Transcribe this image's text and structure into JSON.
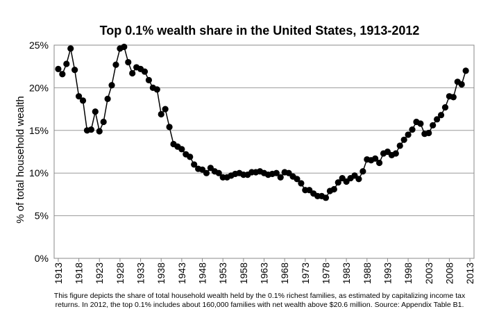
{
  "chart_data": {
    "type": "line",
    "title": "Top 0.1% wealth share in the United States, 1913-2012",
    "y_label": "% of total household wealth",
    "note": [
      "This figure depicts the share of total household wealth held by the 0.1% richest families, as estimated by capitalizing income tax",
      "returns. In 2012, the top 0.1% includes about 160,000 families with net wealth above $20.6 million. Source: Appendix Table B1."
    ],
    "x": [
      1913,
      1914,
      1915,
      1916,
      1917,
      1918,
      1919,
      1920,
      1921,
      1922,
      1923,
      1924,
      1925,
      1926,
      1927,
      1928,
      1929,
      1930,
      1931,
      1932,
      1933,
      1934,
      1935,
      1936,
      1937,
      1938,
      1939,
      1940,
      1941,
      1942,
      1943,
      1944,
      1945,
      1946,
      1947,
      1948,
      1949,
      1950,
      1951,
      1952,
      1953,
      1954,
      1955,
      1956,
      1957,
      1958,
      1959,
      1960,
      1961,
      1962,
      1963,
      1964,
      1965,
      1966,
      1967,
      1968,
      1969,
      1970,
      1971,
      1972,
      1973,
      1974,
      1975,
      1976,
      1977,
      1978,
      1979,
      1980,
      1981,
      1982,
      1983,
      1984,
      1985,
      1986,
      1987,
      1988,
      1989,
      1990,
      1991,
      1992,
      1993,
      1994,
      1995,
      1996,
      1997,
      1998,
      1999,
      2000,
      2001,
      2002,
      2003,
      2004,
      2005,
      2006,
      2007,
      2008,
      2009,
      2010,
      2011,
      2012
    ],
    "series": [
      {
        "color": "#000000",
        "values": [
          22.2,
          21.6,
          22.8,
          24.6,
          22.1,
          19.0,
          18.5,
          15.0,
          15.1,
          17.2,
          14.9,
          16.0,
          18.7,
          20.3,
          22.7,
          24.6,
          24.8,
          23.0,
          21.7,
          22.4,
          22.2,
          21.9,
          20.9,
          20.0,
          19.8,
          16.9,
          17.5,
          15.4,
          13.4,
          13.1,
          12.8,
          12.2,
          11.9,
          11.0,
          10.5,
          10.4,
          10.0,
          10.6,
          10.2,
          10.0,
          9.5,
          9.5,
          9.7,
          9.9,
          10.0,
          9.8,
          9.8,
          10.1,
          10.1,
          10.2,
          10.0,
          9.8,
          9.9,
          10.0,
          9.5,
          10.1,
          10.0,
          9.6,
          9.3,
          8.8,
          8.0,
          8.0,
          7.6,
          7.3,
          7.3,
          7.1,
          7.9,
          8.1,
          8.9,
          9.4,
          9.0,
          9.4,
          9.7,
          9.3,
          10.2,
          11.6,
          11.5,
          11.7,
          11.2,
          12.3,
          12.5,
          12.1,
          12.3,
          13.2,
          13.9,
          14.5,
          15.1,
          16.0,
          15.8,
          14.6,
          14.7,
          15.6,
          16.3,
          16.8,
          17.7,
          19.0,
          18.9,
          20.7,
          20.4,
          22.0
        ]
      }
    ],
    "xlim": [
      1912,
      2014
    ],
    "xticks": [
      1913,
      1918,
      1923,
      1928,
      1933,
      1938,
      1943,
      1948,
      1953,
      1958,
      1963,
      1968,
      1973,
      1978,
      1983,
      1988,
      1993,
      1998,
      2003,
      2008,
      2013
    ],
    "ylim": [
      0,
      25
    ],
    "yticks": [
      {
        "value": 0,
        "label": "0%"
      },
      {
        "value": 5,
        "label": "5%"
      },
      {
        "value": 10,
        "label": "10%"
      },
      {
        "value": 15,
        "label": "15%"
      },
      {
        "value": 20,
        "label": "20%"
      },
      {
        "value": 25,
        "label": "25%"
      }
    ],
    "grid": true
  }
}
